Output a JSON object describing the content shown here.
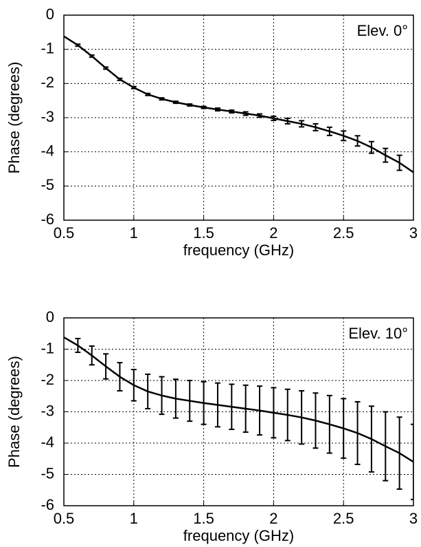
{
  "chart_data": [
    {
      "type": "errorline",
      "annotation": "Elev. 0°",
      "xlabel": "frequency (GHz)",
      "ylabel": "Phase (degrees)",
      "x": [
        0.5,
        0.6,
        0.7,
        0.8,
        0.9,
        1.0,
        1.1,
        1.2,
        1.3,
        1.4,
        1.5,
        1.6,
        1.7,
        1.8,
        1.9,
        2.0,
        2.1,
        2.2,
        2.3,
        2.4,
        2.5,
        2.6,
        2.7,
        2.8,
        2.9,
        3.0
      ],
      "values": [
        -0.62,
        -0.88,
        -1.2,
        -1.55,
        -1.88,
        -2.12,
        -2.32,
        -2.45,
        -2.55,
        -2.63,
        -2.7,
        -2.76,
        -2.82,
        -2.88,
        -2.94,
        -3.02,
        -3.1,
        -3.18,
        -3.28,
        -3.4,
        -3.53,
        -3.68,
        -3.87,
        -4.1,
        -4.32,
        -4.6
      ],
      "errors": [
        null,
        0.03,
        0.03,
        0.03,
        0.03,
        0.03,
        0.03,
        0.03,
        0.03,
        0.03,
        0.03,
        0.04,
        0.04,
        0.05,
        0.05,
        0.06,
        0.08,
        0.09,
        0.1,
        0.12,
        0.14,
        0.15,
        0.17,
        0.2,
        0.22,
        null
      ],
      "color": "#000000",
      "xlim": [
        0.5,
        3
      ],
      "ylim": [
        -6,
        0
      ],
      "xticks": [
        0.5,
        1,
        1.5,
        2,
        2.5,
        3
      ],
      "yticks": [
        0,
        -1,
        -2,
        -3,
        -4,
        -5,
        -6
      ],
      "grid": true
    },
    {
      "type": "errorline",
      "annotation": "Elev. 10°",
      "xlabel": "frequency (GHz)",
      "ylabel": "Phase (degrees)",
      "x": [
        0.5,
        0.6,
        0.7,
        0.8,
        0.9,
        1.0,
        1.1,
        1.2,
        1.3,
        1.4,
        1.5,
        1.6,
        1.7,
        1.8,
        1.9,
        2.0,
        2.1,
        2.2,
        2.3,
        2.4,
        2.5,
        2.6,
        2.7,
        2.8,
        2.9,
        3.0
      ],
      "values": [
        -0.62,
        -0.88,
        -1.2,
        -1.55,
        -1.88,
        -2.15,
        -2.35,
        -2.48,
        -2.58,
        -2.65,
        -2.72,
        -2.78,
        -2.84,
        -2.9,
        -2.96,
        -3.03,
        -3.1,
        -3.18,
        -3.28,
        -3.4,
        -3.53,
        -3.68,
        -3.87,
        -4.1,
        -4.32,
        -4.6
      ],
      "errors": [
        null,
        0.22,
        0.3,
        0.4,
        0.45,
        0.5,
        0.55,
        0.6,
        0.62,
        0.65,
        0.68,
        0.7,
        0.72,
        0.75,
        0.78,
        0.8,
        0.82,
        0.85,
        0.88,
        0.92,
        0.95,
        1.0,
        1.05,
        1.1,
        1.15,
        1.2
      ],
      "color": "#000000",
      "xlim": [
        0.5,
        3
      ],
      "ylim": [
        -6,
        0
      ],
      "xticks": [
        0.5,
        1,
        1.5,
        2,
        2.5,
        3
      ],
      "yticks": [
        0,
        -1,
        -2,
        -3,
        -4,
        -5,
        -6
      ],
      "grid": true
    }
  ]
}
